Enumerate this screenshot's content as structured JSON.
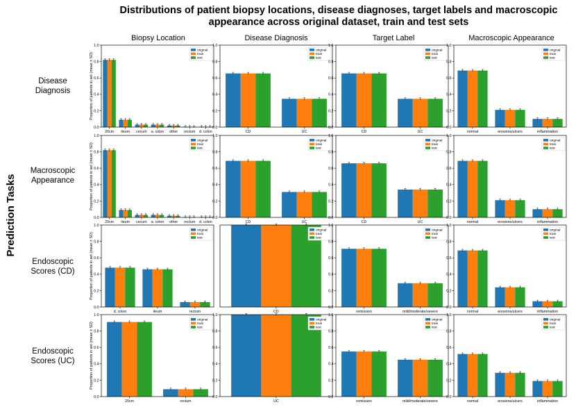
{
  "title_line1": "Distributions of patient biopsy locations, disease diagnoses, target labels and macroscopic",
  "title_line2": "appearance across original dataset, train and test sets",
  "row_group_label": "Prediction Tasks",
  "column_titles": [
    "Biopsy Location",
    "Disease Diagnosis",
    "Target Label",
    "Macroscopic Appearance"
  ],
  "row_titles": [
    [
      "Disease",
      "Diagnosis"
    ],
    [
      "Macroscopic",
      "Appearance"
    ],
    [
      "Endoscopic",
      "Scores (CD)"
    ],
    [
      "Endoscopic",
      "Scores (UC)"
    ]
  ],
  "ylabel": "Proportion of patients in set (mean ± SD)",
  "legend": [
    "original",
    "train",
    "test"
  ],
  "colors": {
    "original": "#1f77b4",
    "train": "#ff7f0e",
    "test": "#2ca02c"
  },
  "chart_data": [
    {
      "type": "bar",
      "row": 0,
      "col": 0,
      "ylim": [
        0,
        1
      ],
      "yticks": [
        "0.0",
        "0.2",
        "0.4",
        "0.6",
        "0.8",
        "1.0"
      ],
      "categories": [
        "20cm",
        "ileum",
        "cecum",
        "a. colon",
        "other",
        "rectum",
        "d. colon"
      ],
      "series": [
        {
          "name": "original",
          "values": [
            0.82,
            0.09,
            0.03,
            0.03,
            0.02,
            0.005,
            0.005
          ]
        },
        {
          "name": "train",
          "values": [
            0.82,
            0.09,
            0.03,
            0.03,
            0.02,
            0.005,
            0.005
          ]
        },
        {
          "name": "test",
          "values": [
            0.82,
            0.09,
            0.03,
            0.03,
            0.02,
            0.005,
            0.005
          ]
        }
      ]
    },
    {
      "type": "bar",
      "row": 0,
      "col": 1,
      "ylim": [
        0,
        1
      ],
      "yticks": [
        "0.0",
        "0.2",
        "0.4",
        "0.6",
        "0.8",
        "1.0"
      ],
      "categories": [
        "CD",
        "UC"
      ],
      "series": [
        {
          "name": "original",
          "values": [
            0.655,
            0.345
          ]
        },
        {
          "name": "train",
          "values": [
            0.655,
            0.345
          ]
        },
        {
          "name": "test",
          "values": [
            0.655,
            0.345
          ]
        }
      ]
    },
    {
      "type": "bar",
      "row": 0,
      "col": 2,
      "ylim": [
        0,
        1
      ],
      "yticks": [
        "0.0",
        "0.2",
        "0.4",
        "0.6",
        "0.8",
        "1.0"
      ],
      "categories": [
        "CD",
        "UC"
      ],
      "series": [
        {
          "name": "original",
          "values": [
            0.655,
            0.345
          ]
        },
        {
          "name": "train",
          "values": [
            0.655,
            0.345
          ]
        },
        {
          "name": "test",
          "values": [
            0.655,
            0.345
          ]
        }
      ]
    },
    {
      "type": "bar",
      "row": 0,
      "col": 3,
      "ylim": [
        0,
        1
      ],
      "yticks": [
        "0.0",
        "0.2",
        "0.4",
        "0.6",
        "0.8",
        "1.0"
      ],
      "categories": [
        "normal",
        "erosions/ulcers",
        "inflammation"
      ],
      "series": [
        {
          "name": "original",
          "values": [
            0.69,
            0.21,
            0.1
          ]
        },
        {
          "name": "train",
          "values": [
            0.69,
            0.21,
            0.1
          ]
        },
        {
          "name": "test",
          "values": [
            0.69,
            0.21,
            0.1
          ]
        }
      ]
    },
    {
      "type": "bar",
      "row": 1,
      "col": 0,
      "ylim": [
        0,
        1
      ],
      "yticks": [
        "0.0",
        "0.2",
        "0.4",
        "0.6",
        "0.8",
        "1.0"
      ],
      "categories": [
        "20cm",
        "ileum",
        "cecum",
        "a. colon",
        "other",
        "rectum",
        "d. colon"
      ],
      "series": [
        {
          "name": "original",
          "values": [
            0.82,
            0.09,
            0.03,
            0.03,
            0.02,
            0.005,
            0.005
          ]
        },
        {
          "name": "train",
          "values": [
            0.82,
            0.09,
            0.03,
            0.03,
            0.02,
            0.005,
            0.005
          ]
        },
        {
          "name": "test",
          "values": [
            0.82,
            0.09,
            0.03,
            0.03,
            0.02,
            0.005,
            0.005
          ]
        }
      ]
    },
    {
      "type": "bar",
      "row": 1,
      "col": 1,
      "ylim": [
        0,
        1
      ],
      "yticks": [
        "0.0",
        "0.2",
        "0.4",
        "0.6",
        "0.8",
        "1.0"
      ],
      "categories": [
        "CD",
        "UC"
      ],
      "series": [
        {
          "name": "original",
          "values": [
            0.69,
            0.31
          ]
        },
        {
          "name": "train",
          "values": [
            0.69,
            0.31
          ]
        },
        {
          "name": "test",
          "values": [
            0.69,
            0.31
          ]
        }
      ]
    },
    {
      "type": "bar",
      "row": 1,
      "col": 2,
      "ylim": [
        0,
        1
      ],
      "yticks": [
        "0.0",
        "0.2",
        "0.4",
        "0.6",
        "0.8",
        "1.0"
      ],
      "categories": [
        "CD",
        "UC"
      ],
      "series": [
        {
          "name": "original",
          "values": [
            0.66,
            0.34
          ]
        },
        {
          "name": "train",
          "values": [
            0.66,
            0.34
          ]
        },
        {
          "name": "test",
          "values": [
            0.66,
            0.34
          ]
        }
      ]
    },
    {
      "type": "bar",
      "row": 1,
      "col": 3,
      "ylim": [
        0,
        1
      ],
      "yticks": [
        "0.0",
        "0.2",
        "0.4",
        "0.6",
        "0.8",
        "1.0"
      ],
      "categories": [
        "normal",
        "erosions/ulcers",
        "inflammation"
      ],
      "series": [
        {
          "name": "original",
          "values": [
            0.69,
            0.21,
            0.1
          ]
        },
        {
          "name": "train",
          "values": [
            0.69,
            0.21,
            0.1
          ]
        },
        {
          "name": "test",
          "values": [
            0.69,
            0.21,
            0.1
          ]
        }
      ]
    },
    {
      "type": "bar",
      "row": 2,
      "col": 0,
      "ylim": [
        0,
        1
      ],
      "yticks": [
        "0.0",
        "0.2",
        "0.4",
        "0.6",
        "0.8",
        "1.0"
      ],
      "categories": [
        "d. colon",
        "ileum",
        "rectum"
      ],
      "series": [
        {
          "name": "original",
          "values": [
            0.48,
            0.46,
            0.06
          ]
        },
        {
          "name": "train",
          "values": [
            0.48,
            0.46,
            0.06
          ]
        },
        {
          "name": "test",
          "values": [
            0.48,
            0.46,
            0.06
          ]
        }
      ]
    },
    {
      "type": "bar",
      "row": 2,
      "col": 1,
      "ylim": [
        0,
        1
      ],
      "yticks": [],
      "categories": [
        "CD"
      ],
      "series": [
        {
          "name": "original",
          "values": [
            1.0
          ]
        },
        {
          "name": "train",
          "values": [
            1.0
          ]
        },
        {
          "name": "test",
          "values": [
            1.0
          ]
        }
      ]
    },
    {
      "type": "bar",
      "row": 2,
      "col": 2,
      "ylim": [
        0,
        1
      ],
      "yticks": [
        "0.0",
        "0.2",
        "0.4",
        "0.6",
        "0.8",
        "1.0"
      ],
      "categories": [
        "remission",
        "mild/moderate/severe"
      ],
      "series": [
        {
          "name": "original",
          "values": [
            0.71,
            0.29
          ]
        },
        {
          "name": "train",
          "values": [
            0.71,
            0.29
          ]
        },
        {
          "name": "test",
          "values": [
            0.71,
            0.29
          ]
        }
      ]
    },
    {
      "type": "bar",
      "row": 2,
      "col": 3,
      "ylim": [
        0,
        1
      ],
      "yticks": [
        "0.0",
        "0.2",
        "0.4",
        "0.6",
        "0.8",
        "1.0"
      ],
      "categories": [
        "normal",
        "erosions/ulcers",
        "inflammation"
      ],
      "series": [
        {
          "name": "original",
          "values": [
            0.69,
            0.24,
            0.07
          ]
        },
        {
          "name": "train",
          "values": [
            0.69,
            0.24,
            0.07
          ]
        },
        {
          "name": "test",
          "values": [
            0.69,
            0.24,
            0.07
          ]
        }
      ]
    },
    {
      "type": "bar",
      "row": 3,
      "col": 0,
      "ylim": [
        0,
        1
      ],
      "yticks": [
        "0.0",
        "0.2",
        "0.4",
        "0.6",
        "0.8",
        "1.0"
      ],
      "categories": [
        "20cm",
        "rectum"
      ],
      "series": [
        {
          "name": "original",
          "values": [
            0.91,
            0.09
          ]
        },
        {
          "name": "train",
          "values": [
            0.91,
            0.09
          ]
        },
        {
          "name": "test",
          "values": [
            0.91,
            0.09
          ]
        }
      ]
    },
    {
      "type": "bar",
      "row": 3,
      "col": 1,
      "ylim": [
        0,
        1
      ],
      "yticks": [
        "0.0",
        "0.2",
        "0.4",
        "0.6",
        "0.8",
        "1.0"
      ],
      "categories": [
        "UC"
      ],
      "series": [
        {
          "name": "original",
          "values": [
            1.0
          ]
        },
        {
          "name": "train",
          "values": [
            1.0
          ]
        },
        {
          "name": "test",
          "values": [
            1.0
          ]
        }
      ]
    },
    {
      "type": "bar",
      "row": 3,
      "col": 2,
      "ylim": [
        0,
        1
      ],
      "yticks": [
        "0.0",
        "0.2",
        "0.4",
        "0.6",
        "0.8",
        "1.0"
      ],
      "categories": [
        "remission",
        "mild/moderate/severe"
      ],
      "series": [
        {
          "name": "original",
          "values": [
            0.55,
            0.45
          ]
        },
        {
          "name": "train",
          "values": [
            0.55,
            0.45
          ]
        },
        {
          "name": "test",
          "values": [
            0.55,
            0.45
          ]
        }
      ]
    },
    {
      "type": "bar",
      "row": 3,
      "col": 3,
      "ylim": [
        0,
        1
      ],
      "yticks": [
        "0.0",
        "0.2",
        "0.4",
        "0.6",
        "0.8",
        "1.0"
      ],
      "categories": [
        "normal",
        "erosions/ulcers",
        "inflammation"
      ],
      "series": [
        {
          "name": "original",
          "values": [
            0.52,
            0.29,
            0.19
          ]
        },
        {
          "name": "train",
          "values": [
            0.52,
            0.29,
            0.19
          ]
        },
        {
          "name": "test",
          "values": [
            0.52,
            0.29,
            0.19
          ]
        }
      ]
    }
  ]
}
